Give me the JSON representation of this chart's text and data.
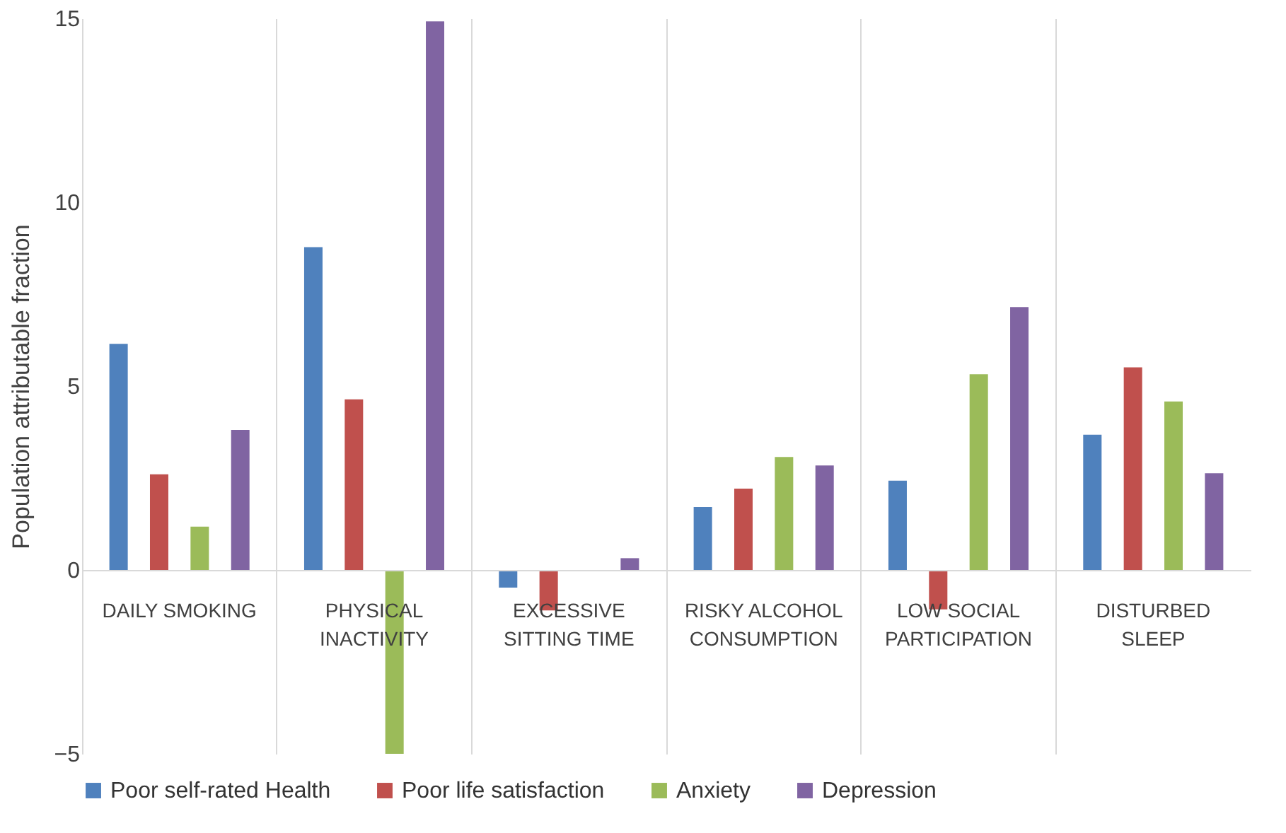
{
  "chart_data": {
    "type": "bar",
    "ylabel": "Population attributable fraction",
    "categories": [
      "DAILY SMOKING",
      "PHYSICAL INACTIVITY",
      "EXCESSIVE SITTING TIME",
      "RISKY ALCOHOL CONSUMPTION",
      "LOW SOCIAL PARTICIPATION",
      "DISTURBED SLEEP"
    ],
    "series": [
      {
        "name": "Poor self-rated Health",
        "color": "#4f81bd",
        "values": [
          6.15,
          8.78,
          -0.48,
          1.71,
          2.43,
          3.68
        ]
      },
      {
        "name": "Poor life satisfaction",
        "color": "#c0504d",
        "values": [
          2.6,
          4.64,
          -1.1,
          2.21,
          -1.07,
          5.51
        ]
      },
      {
        "name": "Anxiety",
        "color": "#9bbb59",
        "values": [
          1.18,
          -5,
          null,
          3.07,
          5.32,
          4.58
        ]
      },
      {
        "name": "Depression",
        "color": "#8064a2",
        "values": [
          3.81,
          14.92,
          0.32,
          2.84,
          7.15,
          2.63
        ]
      }
    ],
    "ylim": [
      -5,
      15
    ],
    "yticks": [
      -5,
      0,
      5,
      10,
      15
    ],
    "grid": "x",
    "legend": "bottom"
  }
}
